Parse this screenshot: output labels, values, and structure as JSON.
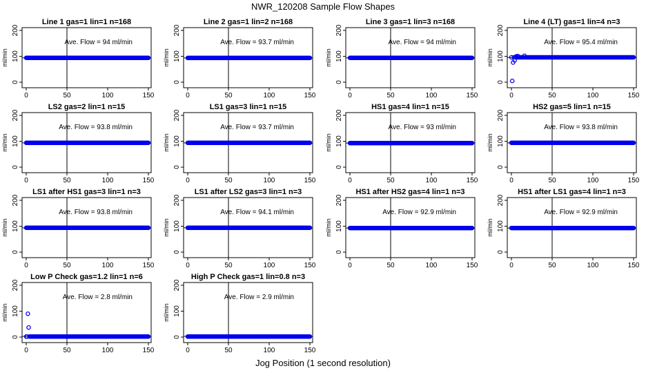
{
  "title": "NWR_120208  Sample Flow Shapes",
  "x_caption": "Jog Position (1 second resolution)",
  "chart_data": [
    {
      "type": "scatter",
      "title": "Line 1 gas=1 lin=1 n=168",
      "ylabel": "ml/min",
      "annotation": "Ave. Flow =  94  ml/min",
      "xlim": [
        0,
        150
      ],
      "ylim": [
        0,
        200
      ],
      "xticks": [
        0,
        50,
        100,
        150
      ],
      "yticks": [
        0,
        100,
        200
      ],
      "vline": 50,
      "hline": 94,
      "level": 94,
      "outliers": []
    },
    {
      "type": "scatter",
      "title": "Line 2 gas=1 lin=2 n=168",
      "ylabel": "ml/min",
      "annotation": "Ave. Flow =  93.7  ml/min",
      "xlim": [
        0,
        150
      ],
      "ylim": [
        0,
        200
      ],
      "xticks": [
        0,
        50,
        100,
        150
      ],
      "yticks": [
        0,
        100,
        200
      ],
      "vline": 50,
      "hline": 93.7,
      "level": 93.7,
      "outliers": []
    },
    {
      "type": "scatter",
      "title": "Line 3 gas=1 lin=3 n=168",
      "ylabel": "ml/min",
      "annotation": "Ave. Flow =  94  ml/min",
      "xlim": [
        0,
        150
      ],
      "ylim": [
        0,
        200
      ],
      "xticks": [
        0,
        50,
        100,
        150
      ],
      "yticks": [
        0,
        100,
        200
      ],
      "vline": 50,
      "hline": 94,
      "level": 94,
      "outliers": []
    },
    {
      "type": "scatter",
      "title": "Line 4 (LT) gas=1 lin=4 n=3",
      "ylabel": "ml/min",
      "annotation": "Ave. Flow =  95.4  ml/min",
      "xlim": [
        0,
        150
      ],
      "ylim": [
        0,
        200
      ],
      "xticks": [
        0,
        50,
        100,
        150
      ],
      "yticks": [
        0,
        100,
        200
      ],
      "vline": 50,
      "hline": 95.4,
      "level": 96,
      "outliers": [
        [
          1,
          5
        ],
        [
          2,
          76
        ],
        [
          4,
          84
        ],
        [
          6,
          100
        ],
        [
          8,
          101
        ],
        [
          16,
          102
        ]
      ]
    },
    {
      "type": "scatter",
      "title": "LS2 gas=2 lin=1 n=15",
      "ylabel": "ml/min",
      "annotation": "Ave. Flow =  93.8  ml/min",
      "xlim": [
        0,
        150
      ],
      "ylim": [
        0,
        200
      ],
      "xticks": [
        0,
        50,
        100,
        150
      ],
      "yticks": [
        0,
        100,
        200
      ],
      "vline": 50,
      "hline": 93.8,
      "level": 94,
      "outliers": []
    },
    {
      "type": "scatter",
      "title": "LS1 gas=3 lin=1 n=15",
      "ylabel": "ml/min",
      "annotation": "Ave. Flow =  93.7  ml/min",
      "xlim": [
        0,
        150
      ],
      "ylim": [
        0,
        200
      ],
      "xticks": [
        0,
        50,
        100,
        150
      ],
      "yticks": [
        0,
        100,
        200
      ],
      "vline": 50,
      "hline": 93.7,
      "level": 94,
      "outliers": []
    },
    {
      "type": "scatter",
      "title": "HS1 gas=4 lin=1 n=15",
      "ylabel": "ml/min",
      "annotation": "Ave. Flow =  93  ml/min",
      "xlim": [
        0,
        150
      ],
      "ylim": [
        0,
        200
      ],
      "xticks": [
        0,
        50,
        100,
        150
      ],
      "yticks": [
        0,
        100,
        200
      ],
      "vline": 50,
      "hline": 93,
      "level": 93,
      "outliers": []
    },
    {
      "type": "scatter",
      "title": "HS2 gas=5 lin=1 n=15",
      "ylabel": "ml/min",
      "annotation": "Ave. Flow =  93.8  ml/min",
      "xlim": [
        0,
        150
      ],
      "ylim": [
        0,
        200
      ],
      "xticks": [
        0,
        50,
        100,
        150
      ],
      "yticks": [
        0,
        100,
        200
      ],
      "vline": 50,
      "hline": 93.8,
      "level": 94,
      "outliers": []
    },
    {
      "type": "scatter",
      "title": "LS1 after HS1 gas=3 lin=1 n=3",
      "ylabel": "ml/min",
      "annotation": "Ave. Flow =  93.8  ml/min",
      "xlim": [
        0,
        150
      ],
      "ylim": [
        0,
        200
      ],
      "xticks": [
        0,
        50,
        100,
        150
      ],
      "yticks": [
        0,
        100,
        200
      ],
      "vline": 50,
      "hline": 93.8,
      "level": 94,
      "outliers": []
    },
    {
      "type": "scatter",
      "title": "LS1 after LS2 gas=3 lin=1 n=3",
      "ylabel": "ml/min",
      "annotation": "Ave. Flow =  94.1  ml/min",
      "xlim": [
        0,
        150
      ],
      "ylim": [
        0,
        200
      ],
      "xticks": [
        0,
        50,
        100,
        150
      ],
      "yticks": [
        0,
        100,
        200
      ],
      "vline": 50,
      "hline": 94.1,
      "level": 94,
      "outliers": []
    },
    {
      "type": "scatter",
      "title": "HS1 after HS2 gas=4 lin=1 n=3",
      "ylabel": "ml/min",
      "annotation": "Ave. Flow =  92.9  ml/min",
      "xlim": [
        0,
        150
      ],
      "ylim": [
        0,
        200
      ],
      "xticks": [
        0,
        50,
        100,
        150
      ],
      "yticks": [
        0,
        100,
        200
      ],
      "vline": 50,
      "hline": 92.9,
      "level": 93,
      "outliers": []
    },
    {
      "type": "scatter",
      "title": "HS1 after LS1 gas=4 lin=1 n=3",
      "ylabel": "ml/min",
      "annotation": "Ave. Flow =  92.9  ml/min",
      "xlim": [
        0,
        150
      ],
      "ylim": [
        0,
        200
      ],
      "xticks": [
        0,
        50,
        100,
        150
      ],
      "yticks": [
        0,
        100,
        200
      ],
      "vline": 50,
      "hline": 92.9,
      "level": 93,
      "outliers": []
    },
    {
      "type": "scatter",
      "title": "Low P Check gas=1.2 lin=1 n=6",
      "ylabel": "ml/min",
      "annotation": "Ave. Flow =  2.8  ml/min",
      "xlim": [
        0,
        150
      ],
      "ylim": [
        0,
        200
      ],
      "xticks": [
        0,
        50,
        100,
        150
      ],
      "yticks": [
        0,
        100,
        200
      ],
      "vline": 50,
      "hline": 2.8,
      "level": 2,
      "outliers": [
        [
          2,
          90
        ],
        [
          3,
          37
        ]
      ]
    },
    {
      "type": "scatter",
      "title": "High P Check gas=1 lin=0.8 n=3",
      "ylabel": "ml/min",
      "annotation": "Ave. Flow =  2.9  ml/min",
      "xlim": [
        0,
        150
      ],
      "ylim": [
        0,
        200
      ],
      "xticks": [
        0,
        50,
        100,
        150
      ],
      "yticks": [
        0,
        100,
        200
      ],
      "vline": 50,
      "hline": 2.9,
      "level": 2,
      "outliers": []
    }
  ],
  "colors": {
    "points": "#0000ee",
    "axes": "#000000"
  }
}
